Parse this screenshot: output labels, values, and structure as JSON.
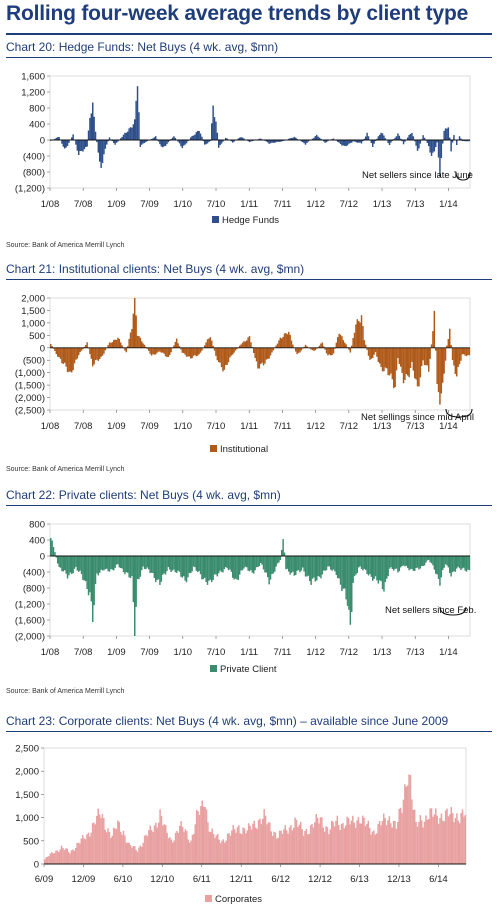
{
  "page": {
    "title": "Rolling four-week average trends by client type"
  },
  "chart_data": [
    {
      "id": "chart20",
      "type": "bar",
      "title": "Chart 20: Hedge Funds: Net Buys (4 wk. avg, $mn)",
      "color": "#2e4f8a",
      "ylim": [
        -1200,
        1600
      ],
      "yticks": [
        1600,
        1200,
        800,
        400,
        0,
        -400,
        -800,
        -1200
      ],
      "ytick_labels": [
        "1,600",
        "1,200",
        "800",
        "400",
        "0",
        "(400)",
        "(800)",
        "(1,200)"
      ],
      "x_start": "2008-01",
      "x_end": "2014-06",
      "xtick_labels": [
        "1/08",
        "7/08",
        "1/09",
        "7/09",
        "1/10",
        "7/10",
        "1/11",
        "7/11",
        "1/12",
        "7/12",
        "1/13",
        "7/13",
        "1/14"
      ],
      "legend": "Hedge Funds",
      "annotation": "Net sellers since late June",
      "source": "Source: Bank of America Merrill Lynch",
      "keypoints": [
        [
          0,
          -20
        ],
        [
          6,
          80
        ],
        [
          10,
          -260
        ],
        [
          16,
          120
        ],
        [
          20,
          -380
        ],
        [
          26,
          -150
        ],
        [
          28,
          550
        ],
        [
          30,
          880
        ],
        [
          33,
          -60
        ],
        [
          36,
          -780
        ],
        [
          38,
          -300
        ],
        [
          42,
          60
        ],
        [
          46,
          -120
        ],
        [
          52,
          120
        ],
        [
          60,
          450
        ],
        [
          62,
          1400
        ],
        [
          64,
          -150
        ],
        [
          68,
          -50
        ],
        [
          75,
          80
        ],
        [
          80,
          -220
        ],
        [
          88,
          100
        ],
        [
          94,
          -200
        ],
        [
          100,
          60
        ],
        [
          106,
          260
        ],
        [
          110,
          -120
        ],
        [
          114,
          -30
        ],
        [
          116,
          860
        ],
        [
          118,
          500
        ],
        [
          120,
          -180
        ],
        [
          125,
          60
        ],
        [
          130,
          -60
        ],
        [
          136,
          80
        ],
        [
          142,
          -50
        ],
        [
          150,
          40
        ],
        [
          156,
          -80
        ],
        [
          165,
          -40
        ],
        [
          174,
          80
        ],
        [
          182,
          -100
        ],
        [
          190,
          120
        ],
        [
          196,
          -70
        ],
        [
          202,
          40
        ],
        [
          210,
          -180
        ],
        [
          216,
          -30
        ],
        [
          222,
          -90
        ],
        [
          226,
          160
        ],
        [
          230,
          -150
        ],
        [
          236,
          210
        ],
        [
          242,
          -120
        ],
        [
          248,
          160
        ],
        [
          252,
          -90
        ],
        [
          258,
          220
        ],
        [
          262,
          -280
        ],
        [
          266,
          120
        ],
        [
          270,
          -160
        ],
        [
          272,
          -440
        ],
        [
          276,
          -60
        ],
        [
          278,
          -800
        ],
        [
          281,
          240
        ],
        [
          284,
          360
        ],
        [
          286,
          -250
        ],
        [
          288,
          120
        ],
        [
          290,
          -120
        ],
        [
          292,
          100
        ],
        [
          294,
          -30
        ]
      ]
    },
    {
      "id": "chart21",
      "type": "bar",
      "title": "Chart 21: Institutional clients: Net Buys (4 wk. avg, $mn)",
      "color": "#b05a1a",
      "ylim": [
        -2500,
        2000
      ],
      "yticks": [
        2000,
        1500,
        1000,
        500,
        0,
        -500,
        -1000,
        -1500,
        -2000,
        -2500
      ],
      "ytick_labels": [
        "2,000",
        "1,500",
        "1,000",
        "500",
        "0",
        "(500)",
        "(1,000)",
        "(1,500)",
        "(2,000)",
        "(2,500)"
      ],
      "x_start": "2008-01",
      "x_end": "2014-06",
      "xtick_labels": [
        "1/08",
        "7/08",
        "1/09",
        "7/09",
        "1/10",
        "7/10",
        "1/11",
        "7/11",
        "1/12",
        "7/12",
        "1/13",
        "7/13",
        "1/14"
      ],
      "legend": "Institutional",
      "annotation": "Net sellings since mid April",
      "source": "Source: Bank of America Merrill Lynch",
      "keypoints": [
        [
          0,
          150
        ],
        [
          8,
          -600
        ],
        [
          14,
          -1000
        ],
        [
          20,
          -300
        ],
        [
          26,
          200
        ],
        [
          30,
          -700
        ],
        [
          36,
          -400
        ],
        [
          42,
          200
        ],
        [
          48,
          400
        ],
        [
          54,
          -200
        ],
        [
          58,
          900
        ],
        [
          60,
          1950
        ],
        [
          62,
          500
        ],
        [
          66,
          200
        ],
        [
          72,
          -300
        ],
        [
          78,
          -150
        ],
        [
          84,
          -400
        ],
        [
          90,
          350
        ],
        [
          94,
          -200
        ],
        [
          100,
          -400
        ],
        [
          106,
          -300
        ],
        [
          110,
          100
        ],
        [
          114,
          500
        ],
        [
          118,
          -350
        ],
        [
          124,
          -900
        ],
        [
          130,
          -250
        ],
        [
          136,
          150
        ],
        [
          142,
          450
        ],
        [
          148,
          -800
        ],
        [
          152,
          -700
        ],
        [
          158,
          -200
        ],
        [
          164,
          400
        ],
        [
          170,
          600
        ],
        [
          176,
          -300
        ],
        [
          182,
          100
        ],
        [
          188,
          -150
        ],
        [
          194,
          200
        ],
        [
          198,
          -350
        ],
        [
          202,
          -250
        ],
        [
          206,
          600
        ],
        [
          210,
          250
        ],
        [
          214,
          -200
        ],
        [
          218,
          900
        ],
        [
          222,
          1350
        ],
        [
          224,
          350
        ],
        [
          228,
          -500
        ],
        [
          232,
          -200
        ],
        [
          236,
          -900
        ],
        [
          240,
          -800
        ],
        [
          244,
          -1300
        ],
        [
          246,
          -1800
        ],
        [
          248,
          -400
        ],
        [
          252,
          -1200
        ],
        [
          256,
          -1100
        ],
        [
          258,
          -700
        ],
        [
          262,
          -1600
        ],
        [
          266,
          -500
        ],
        [
          270,
          -1000
        ],
        [
          274,
          1300
        ],
        [
          276,
          -1500
        ],
        [
          278,
          -2000
        ],
        [
          280,
          -1700
        ],
        [
          283,
          100
        ],
        [
          285,
          700
        ],
        [
          287,
          -500
        ],
        [
          290,
          -1100
        ],
        [
          292,
          -700
        ],
        [
          294,
          -300
        ]
      ]
    },
    {
      "id": "chart22",
      "type": "bar",
      "title": "Chart 22: Private clients: Net Buys (4 wk. avg, $mn)",
      "color": "#3a8c6e",
      "ylim": [
        -2000,
        800
      ],
      "yticks": [
        800,
        400,
        0,
        -400,
        -800,
        -1200,
        -1600,
        -2000
      ],
      "ytick_labels": [
        "800",
        "400",
        "0",
        "(400)",
        "(800)",
        "(1,200)",
        "(1,600)",
        "(2,000)"
      ],
      "x_start": "2008-01",
      "x_end": "2014-06",
      "xtick_labels": [
        "1/08",
        "7/08",
        "1/09",
        "7/09",
        "1/10",
        "7/10",
        "1/11",
        "7/11",
        "1/12",
        "7/12",
        "1/13",
        "7/13",
        "1/14"
      ],
      "legend": "Private Client",
      "annotation": "Net sellers since Feb.",
      "source": "Source: Bank of America Merrill Lynch",
      "keypoints": [
        [
          0,
          450
        ],
        [
          3,
          100
        ],
        [
          6,
          -300
        ],
        [
          12,
          -500
        ],
        [
          18,
          -300
        ],
        [
          24,
          -600
        ],
        [
          28,
          -900
        ],
        [
          30,
          -1550
        ],
        [
          33,
          -500
        ],
        [
          38,
          -300
        ],
        [
          44,
          -400
        ],
        [
          48,
          -200
        ],
        [
          54,
          -450
        ],
        [
          58,
          -600
        ],
        [
          60,
          -1800
        ],
        [
          62,
          -600
        ],
        [
          66,
          -300
        ],
        [
          72,
          -400
        ],
        [
          78,
          -700
        ],
        [
          84,
          -300
        ],
        [
          90,
          -400
        ],
        [
          96,
          -600
        ],
        [
          102,
          -300
        ],
        [
          108,
          -500
        ],
        [
          114,
          -700
        ],
        [
          120,
          -400
        ],
        [
          126,
          -300
        ],
        [
          132,
          -600
        ],
        [
          138,
          -300
        ],
        [
          144,
          -400
        ],
        [
          150,
          -200
        ],
        [
          156,
          -600
        ],
        [
          160,
          -350
        ],
        [
          164,
          -100
        ],
        [
          166,
          450
        ],
        [
          168,
          -300
        ],
        [
          174,
          -500
        ],
        [
          180,
          -300
        ],
        [
          186,
          -700
        ],
        [
          192,
          -500
        ],
        [
          198,
          -300
        ],
        [
          204,
          -400
        ],
        [
          208,
          -800
        ],
        [
          212,
          -1200
        ],
        [
          214,
          -1800
        ],
        [
          216,
          -600
        ],
        [
          220,
          -300
        ],
        [
          226,
          -400
        ],
        [
          232,
          -600
        ],
        [
          238,
          -800
        ],
        [
          242,
          -300
        ],
        [
          248,
          -400
        ],
        [
          252,
          -200
        ],
        [
          258,
          -400
        ],
        [
          262,
          -300
        ],
        [
          266,
          -250
        ],
        [
          270,
          -100
        ],
        [
          274,
          -300
        ],
        [
          278,
          -650
        ],
        [
          282,
          -200
        ],
        [
          286,
          -450
        ],
        [
          290,
          -300
        ],
        [
          294,
          -350
        ]
      ]
    },
    {
      "id": "chart23",
      "type": "bar",
      "title": "Chart 23: Corporate clients: Net Buys (4 wk. avg, $mn) – available since June 2009",
      "color": "#e8a0a0",
      "ylim": [
        0,
        2500
      ],
      "yticks": [
        2500,
        2000,
        1500,
        1000,
        500,
        0
      ],
      "ytick_labels": [
        "2,500",
        "2,000",
        "1,500",
        "1,000",
        "500",
        "0"
      ],
      "x_start": "2009-06",
      "x_end": "2014-07",
      "xtick_labels": [
        "6/09",
        "12/09",
        "6/10",
        "12/10",
        "6/11",
        "12/11",
        "6/12",
        "12/12",
        "6/13",
        "12/13",
        "6/14"
      ],
      "legend": "Corporates",
      "annotation": "",
      "source": "",
      "keypoints": [
        [
          0,
          100
        ],
        [
          6,
          250
        ],
        [
          12,
          350
        ],
        [
          18,
          250
        ],
        [
          24,
          450
        ],
        [
          30,
          600
        ],
        [
          36,
          950
        ],
        [
          40,
          1050
        ],
        [
          44,
          800
        ],
        [
          48,
          600
        ],
        [
          52,
          850
        ],
        [
          56,
          700
        ],
        [
          60,
          400
        ],
        [
          66,
          300
        ],
        [
          72,
          600
        ],
        [
          78,
          800
        ],
        [
          82,
          1100
        ],
        [
          86,
          700
        ],
        [
          90,
          500
        ],
        [
          96,
          800
        ],
        [
          100,
          700
        ],
        [
          104,
          500
        ],
        [
          108,
          1000
        ],
        [
          112,
          1200
        ],
        [
          114,
          1450
        ],
        [
          116,
          900
        ],
        [
          120,
          600
        ],
        [
          126,
          500
        ],
        [
          132,
          650
        ],
        [
          138,
          800
        ],
        [
          144,
          700
        ],
        [
          150,
          900
        ],
        [
          156,
          1000
        ],
        [
          160,
          800
        ],
        [
          166,
          600
        ],
        [
          172,
          750
        ],
        [
          178,
          900
        ],
        [
          184,
          700
        ],
        [
          190,
          800
        ],
        [
          196,
          1000
        ],
        [
          202,
          700
        ],
        [
          208,
          950
        ],
        [
          212,
          850
        ],
        [
          218,
          900
        ],
        [
          224,
          1000
        ],
        [
          228,
          850
        ],
        [
          234,
          700
        ],
        [
          240,
          900
        ],
        [
          246,
          1000
        ],
        [
          250,
          800
        ],
        [
          254,
          1200
        ],
        [
          256,
          1600
        ],
        [
          258,
          2100
        ],
        [
          260,
          1800
        ],
        [
          262,
          1200
        ],
        [
          264,
          800
        ],
        [
          266,
          900
        ],
        [
          268,
          1000
        ],
        [
          270,
          950
        ],
        [
          272,
          1050
        ]
      ]
    }
  ]
}
